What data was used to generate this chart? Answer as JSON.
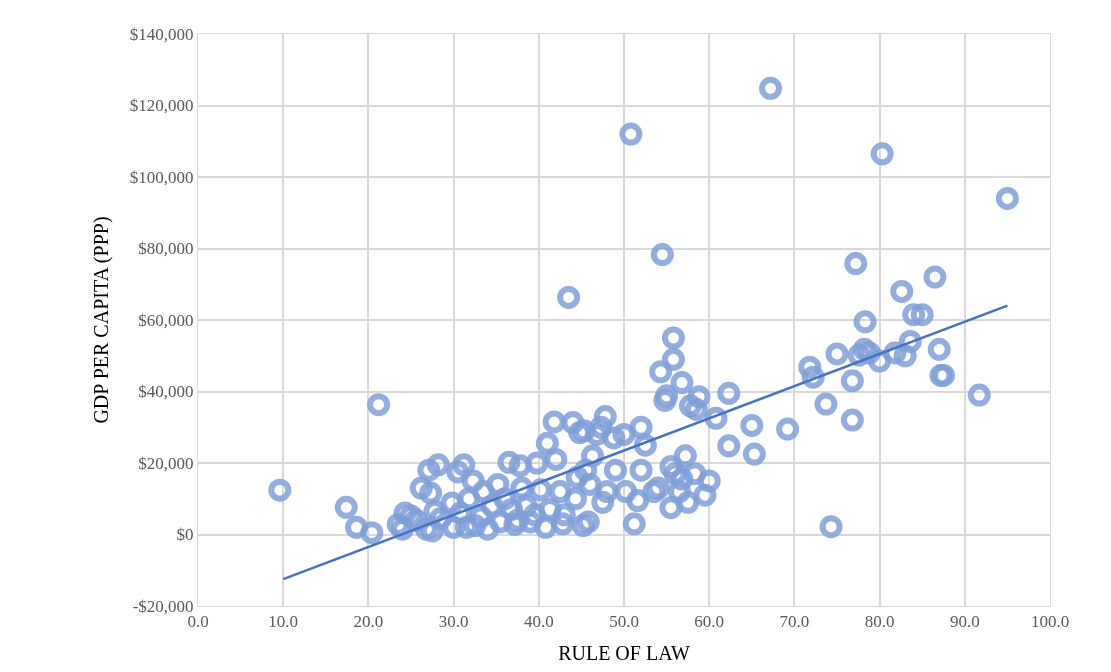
{
  "chart_data": {
    "type": "scatter",
    "xlabel": "RULE OF LAW",
    "ylabel": "GDP PER CAPITA (PPP)",
    "xlim": [
      0,
      100
    ],
    "ylim": [
      -20000,
      140000
    ],
    "xticks": [
      {
        "value": 0,
        "label": "0.0"
      },
      {
        "value": 10,
        "label": "10.0"
      },
      {
        "value": 20,
        "label": "20.0"
      },
      {
        "value": 30,
        "label": "30.0"
      },
      {
        "value": 40,
        "label": "40.0"
      },
      {
        "value": 50,
        "label": "50.0"
      },
      {
        "value": 60,
        "label": "60.0"
      },
      {
        "value": 70,
        "label": "70.0"
      },
      {
        "value": 80,
        "label": "80.0"
      },
      {
        "value": 90,
        "label": "90.0"
      },
      {
        "value": 100,
        "label": "100.0"
      }
    ],
    "yticks": [
      {
        "value": -20000,
        "label": "-$20,000"
      },
      {
        "value": 0,
        "label": "$0"
      },
      {
        "value": 20000,
        "label": "$20,000"
      },
      {
        "value": 40000,
        "label": "$40,000"
      },
      {
        "value": 60000,
        "label": "$60,000"
      },
      {
        "value": 80000,
        "label": "$80,000"
      },
      {
        "value": 100000,
        "label": "$100,000"
      },
      {
        "value": 120000,
        "label": "$120,000"
      },
      {
        "value": 140000,
        "label": "$140,000"
      }
    ],
    "grid": true,
    "series": [
      {
        "marker": "circle",
        "color": "#7f9fd8",
        "x": [
          9.6,
          17.4,
          18.6,
          20.4,
          21.2,
          23.5,
          24,
          24.3,
          25,
          25.6,
          26.2,
          26.8,
          27.1,
          27.3,
          27.5,
          27.8,
          28.2,
          28.5,
          29.8,
          30,
          30.5,
          30.8,
          31.2,
          31.5,
          31.8,
          32.3,
          32.5,
          33.2,
          33.5,
          34,
          34.5,
          35.2,
          35.5,
          36,
          36.5,
          36.8,
          37.2,
          37.5,
          37.8,
          38,
          38.5,
          39,
          39.5,
          39.8,
          40.2,
          40.8,
          41,
          41.3,
          41.8,
          42,
          42.5,
          42.8,
          43,
          43.5,
          44,
          44.3,
          44.5,
          44.8,
          45.2,
          45.3,
          45.5,
          45.8,
          46,
          46.3,
          46.8,
          47.3,
          47.5,
          47.8,
          48,
          48.8,
          49,
          50,
          50.2,
          50.8,
          51.2,
          51.6,
          52,
          52,
          52.5,
          53.5,
          54,
          54.3,
          54.5,
          54.8,
          55,
          55.5,
          55.5,
          55.8,
          55.8,
          56,
          56.5,
          56.8,
          56.8,
          57.2,
          57.5,
          57.8,
          58.3,
          58.5,
          58.8,
          59.5,
          60,
          60.8,
          62.3,
          62.3,
          65,
          65.3,
          67.2,
          69.2,
          71.8,
          72.2,
          73.7,
          74.3,
          75,
          76.8,
          76.8,
          77.2,
          77.6,
          78.2,
          78.3,
          78.8,
          80,
          80.3,
          81.8,
          82.6,
          83,
          83.6,
          84,
          85,
          86.5,
          87,
          87.2,
          87.5,
          91.7,
          95
        ],
        "values": [
          12400,
          7600,
          2000,
          500,
          36300,
          2800,
          1500,
          6000,
          5200,
          4000,
          13000,
          1500,
          18000,
          11600,
          1000,
          6500,
          19500,
          4500,
          8800,
          2000,
          17500,
          6000,
          19500,
          2000,
          10000,
          15000,
          2500,
          5000,
          12000,
          1500,
          8000,
          14000,
          3500,
          10000,
          20200,
          7000,
          2800,
          4000,
          19200,
          13000,
          8000,
          3500,
          5500,
          20000,
          12500,
          2000,
          25500,
          7000,
          31500,
          21000,
          12000,
          3000,
          5500,
          66300,
          31300,
          10000,
          16000,
          28500,
          2500,
          29000,
          18000,
          3500,
          14000,
          22000,
          28000,
          30000,
          9000,
          33000,
          12000,
          27000,
          18000,
          28000,
          12000,
          112000,
          3000,
          9500,
          30000,
          18000,
          25000,
          12000,
          13000,
          45500,
          78300,
          37500,
          38800,
          19000,
          7500,
          55000,
          49000,
          17000,
          12000,
          42500,
          15500,
          22000,
          9000,
          36000,
          17000,
          35000,
          38500,
          11000,
          15000,
          32500,
          39500,
          24800,
          30500,
          22500,
          124800,
          29500,
          46800,
          44000,
          36500,
          2200,
          50500,
          43000,
          32000,
          75800,
          50200,
          51800,
          59500,
          50800,
          48500,
          106500,
          50800,
          68000,
          50000,
          54000,
          61500,
          61500,
          72000,
          51800,
          44500,
          44500,
          39000,
          94000
        ]
      },
      {
        "type": "line",
        "marker": "none",
        "color": "#4472c4",
        "x": [
          10,
          95
        ],
        "values": [
          -12500,
          64000
        ]
      }
    ]
  }
}
